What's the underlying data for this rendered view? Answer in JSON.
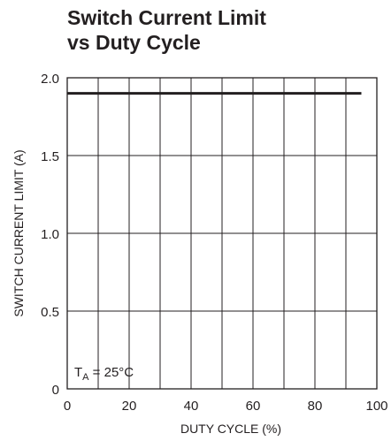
{
  "chart_data": {
    "type": "line",
    "title_lines": [
      "Switch Current Limit",
      "vs Duty Cycle"
    ],
    "xlabel": "DUTY CYCLE (%)",
    "ylabel": "SWITCH CURRENT LIMIT (A)",
    "xlim": [
      0,
      100
    ],
    "ylim": [
      0,
      2.0
    ],
    "x_ticks": [
      0,
      20,
      40,
      60,
      80,
      100
    ],
    "x_tick_labels": [
      "0",
      "20",
      "40",
      "60",
      "80",
      "100"
    ],
    "y_ticks": [
      0,
      0.5,
      1.0,
      1.5,
      2.0
    ],
    "y_tick_labels": [
      "0",
      "0.5",
      "1.0",
      "1.5",
      "2.0"
    ],
    "grid": true,
    "annotation": {
      "main": "T",
      "sub": "A",
      "rest": " = 25°C"
    },
    "series": [
      {
        "x": [
          0,
          95
        ],
        "y": [
          1.9,
          1.9
        ]
      }
    ],
    "colors": {
      "line": "#231f20",
      "grid": "#231f20",
      "frame": "#231f20"
    }
  }
}
